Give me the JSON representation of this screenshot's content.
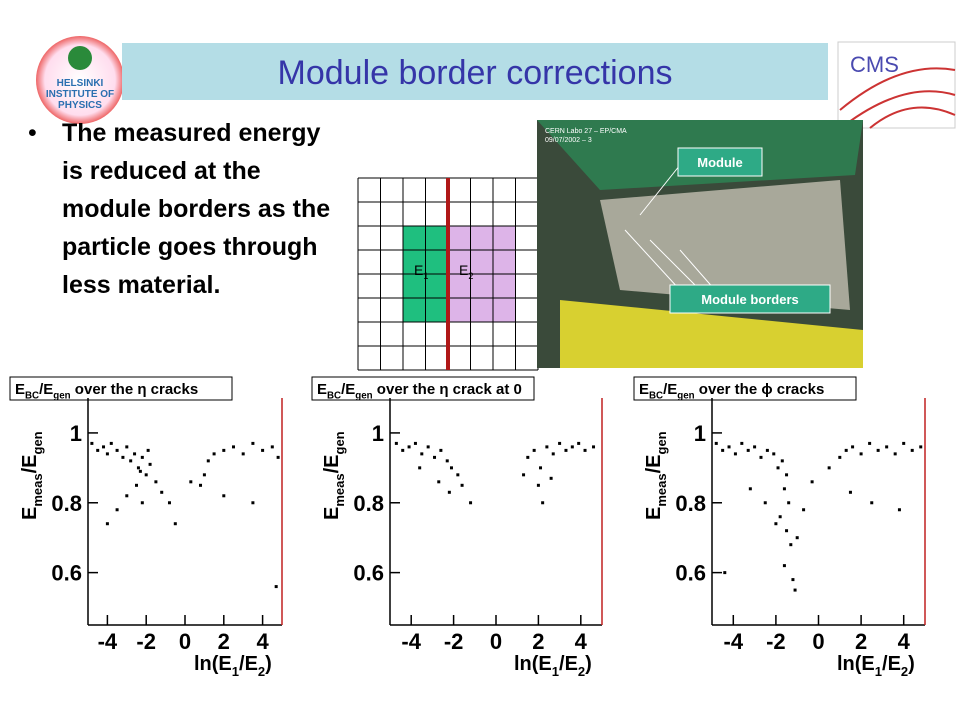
{
  "title": "Module border corrections",
  "bullet": "The measured energy is reduced at the module borders as the particle goes through less material.",
  "logo": {
    "lines": [
      "HELSINKI",
      "INSTITUTE OF",
      "PHYSICS"
    ]
  },
  "cms": "CMS",
  "diagram": {
    "labels": [
      [
        "E",
        "1"
      ],
      [
        "E",
        "2"
      ]
    ]
  },
  "photo": {
    "caption": "CERN Labo 27 – EP/CMA",
    "date": "09/07/2002 – 3",
    "callouts": [
      "Module",
      "Module borders"
    ]
  },
  "chart_data": [
    {
      "type": "scatter",
      "title": [
        "E",
        "BC",
        "/E",
        "gen",
        " over the η cracks"
      ],
      "xlabel": [
        "ln(E",
        "1",
        "/E",
        "2",
        ")"
      ],
      "ylabel": [
        "E",
        "meas",
        "/E",
        "gen"
      ],
      "xlim": [
        -5,
        5
      ],
      "ylim": [
        0.45,
        1.1
      ],
      "xticks": [
        -4,
        -2,
        0,
        2,
        4
      ],
      "yticks": [
        {
          "value": 0.6,
          "label": "0.6"
        },
        {
          "value": 0.8,
          "label": "0.8"
        },
        1
      ],
      "color": "#000000",
      "x": [
        -4.8,
        -4.5,
        -4.2,
        -4,
        -3.8,
        -3.5,
        -3.2,
        -3,
        -2.8,
        -2.6,
        -2.4,
        -2.2,
        -2,
        -2.5,
        -1.8,
        -3,
        -2.2,
        -1.5,
        -1.2,
        -0.8,
        -3.5,
        0.3,
        0.8,
        1,
        1.2,
        1.5,
        2,
        2.5,
        3,
        3.5,
        4,
        4.5,
        4.8,
        2,
        3.5,
        -4,
        4.7,
        -0.5,
        -2.3,
        -1.9
      ],
      "values": [
        0.97,
        0.95,
        0.96,
        0.94,
        0.97,
        0.95,
        0.93,
        0.96,
        0.92,
        0.94,
        0.9,
        0.93,
        0.88,
        0.85,
        0.91,
        0.82,
        0.8,
        0.86,
        0.83,
        0.8,
        0.78,
        0.86,
        0.85,
        0.88,
        0.92,
        0.94,
        0.95,
        0.96,
        0.94,
        0.97,
        0.95,
        0.96,
        0.93,
        0.82,
        0.8,
        0.74,
        0.56,
        0.74,
        0.89,
        0.95
      ]
    },
    {
      "type": "scatter",
      "title": [
        "E",
        "BC",
        "/E",
        "gen",
        " over the η crack at 0"
      ],
      "xlabel": [
        "ln(E",
        "1",
        "/E",
        "2",
        ")"
      ],
      "ylabel": [
        "E",
        "meas",
        "/E",
        "gen"
      ],
      "xlim": [
        -5,
        5
      ],
      "ylim": [
        0.45,
        1.1
      ],
      "xticks": [
        -4,
        -2,
        0,
        2,
        4
      ],
      "yticks": [
        {
          "value": 0.6,
          "label": "0.6"
        },
        {
          "value": 0.8,
          "label": "0.8"
        },
        1
      ],
      "color": "#000000",
      "x": [
        -4.7,
        -4.4,
        -4.1,
        -3.8,
        -3.5,
        -3.2,
        -2.9,
        -2.6,
        -2.3,
        -2.1,
        -1.8,
        -3.6,
        -2.7,
        -2.2,
        -1.6,
        -1.2,
        1.5,
        1.8,
        2.1,
        2.4,
        2.7,
        3,
        3.3,
        3.6,
        3.9,
        4.2,
        4.6,
        1.3,
        2,
        2.6,
        2.2
      ],
      "values": [
        0.97,
        0.95,
        0.96,
        0.97,
        0.94,
        0.96,
        0.93,
        0.95,
        0.92,
        0.9,
        0.88,
        0.9,
        0.86,
        0.83,
        0.85,
        0.8,
        0.93,
        0.95,
        0.9,
        0.96,
        0.94,
        0.97,
        0.95,
        0.96,
        0.97,
        0.95,
        0.96,
        0.88,
        0.85,
        0.87,
        0.8
      ]
    },
    {
      "type": "scatter",
      "title": [
        "E",
        "BC",
        "/E",
        "gen",
        " over the ϕ cracks"
      ],
      "xlabel": [
        "ln(E",
        "1",
        "/E",
        "2",
        ")"
      ],
      "ylabel": [
        "E",
        "meas",
        "/E",
        "gen"
      ],
      "xlim": [
        -5,
        5
      ],
      "ylim": [
        0.45,
        1.1
      ],
      "xticks": [
        -4,
        -2,
        0,
        2,
        4
      ],
      "yticks": [
        {
          "value": 0.6,
          "label": "0.6"
        },
        {
          "value": 0.8,
          "label": "0.8"
        },
        1
      ],
      "color": "#000000",
      "x": [
        -4.8,
        -4.5,
        -4.2,
        -3.9,
        -3.6,
        -3.3,
        -3,
        -2.7,
        -2.4,
        -2.1,
        -1.9,
        -1.7,
        -1.5,
        -1.6,
        -1.4,
        -1.8,
        -1.5,
        -1.3,
        -1.6,
        -1.2,
        -1,
        -0.7,
        -2.5,
        -3.2,
        -4.4,
        0.5,
        1,
        1.3,
        1.6,
        2,
        2.4,
        2.8,
        3.2,
        3.6,
        4,
        4.4,
        4.8,
        1.5,
        2.5,
        3.8,
        -0.3,
        -1.1,
        -2
      ],
      "values": [
        0.97,
        0.95,
        0.96,
        0.94,
        0.97,
        0.95,
        0.96,
        0.93,
        0.95,
        0.94,
        0.9,
        0.92,
        0.88,
        0.84,
        0.8,
        0.76,
        0.72,
        0.68,
        0.62,
        0.58,
        0.7,
        0.78,
        0.8,
        0.84,
        0.6,
        0.9,
        0.93,
        0.95,
        0.96,
        0.94,
        0.97,
        0.95,
        0.96,
        0.94,
        0.97,
        0.95,
        0.96,
        0.83,
        0.8,
        0.78,
        0.86,
        0.55,
        0.74
      ]
    }
  ]
}
